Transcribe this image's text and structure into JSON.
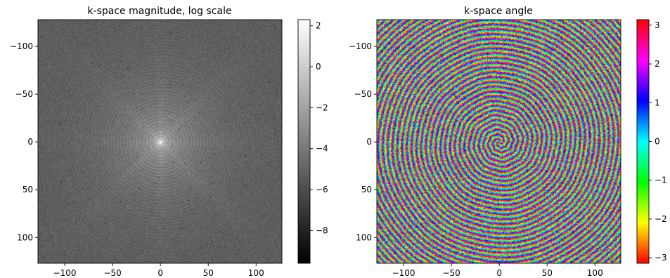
{
  "chart_data": [
    {
      "type": "heatmap",
      "title": "k-space magnitude, log scale",
      "xlabel": "",
      "ylabel": "",
      "xlim": [
        -128,
        127
      ],
      "ylim": [
        127,
        -128
      ],
      "x_ticks": [
        -100,
        -50,
        0,
        50,
        100
      ],
      "y_ticks": [
        -100,
        -50,
        0,
        50,
        100
      ],
      "x_tick_labels": [
        "−100",
        "−50",
        "0",
        "50",
        "100"
      ],
      "y_tick_labels": [
        "−100",
        "−50",
        "0",
        "50",
        "100"
      ],
      "colormap": "gray",
      "colorbar": {
        "min": -9.6,
        "max": 2.3,
        "ticks": [
          2,
          0,
          -2,
          -4,
          -6,
          -8
        ],
        "tick_labels": [
          "2",
          "0",
          "−2",
          "−4",
          "−6",
          "−8"
        ]
      },
      "grid": false
    },
    {
      "type": "heatmap",
      "title": "k-space angle",
      "xlabel": "",
      "ylabel": "",
      "xlim": [
        -128,
        127
      ],
      "ylim": [
        127,
        -128
      ],
      "x_ticks": [
        -100,
        -50,
        0,
        50,
        100
      ],
      "y_ticks": [
        -100,
        -50,
        0,
        50,
        100
      ],
      "x_tick_labels": [
        "−100",
        "−50",
        "0",
        "50",
        "100"
      ],
      "y_tick_labels": [
        "−100",
        "−50",
        "0",
        "50",
        "100"
      ],
      "colormap": "hsv",
      "colorbar": {
        "min": -3.14159,
        "max": 3.14159,
        "ticks": [
          3,
          2,
          1,
          0,
          -1,
          -2,
          -3
        ],
        "tick_labels": [
          "3",
          "2",
          "1",
          "0",
          "−1",
          "−2",
          "−3"
        ]
      },
      "grid": false
    }
  ]
}
